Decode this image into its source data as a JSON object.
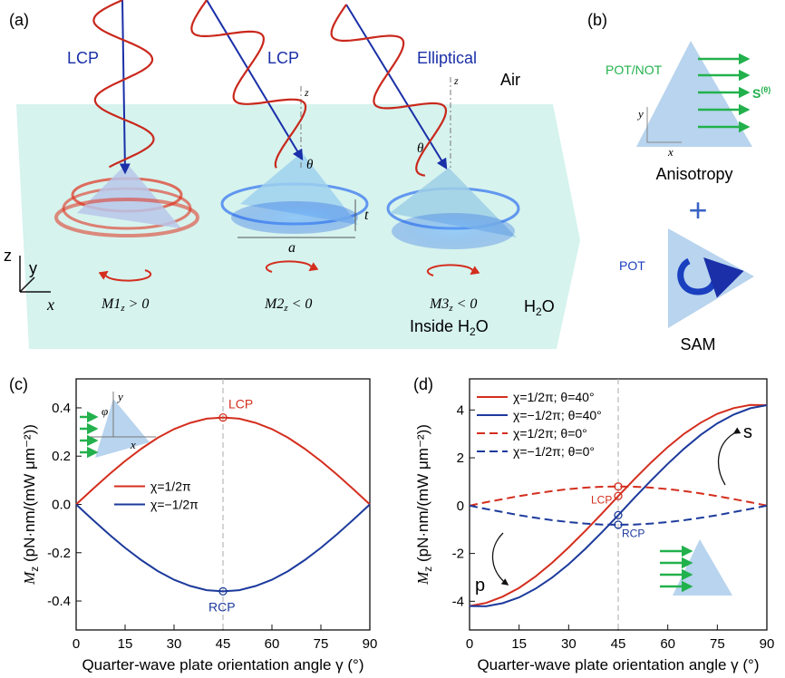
{
  "panel_labels": [
    "(a)",
    "(b)",
    "(c)",
    "(d)"
  ],
  "illustration_a": {
    "beam_labels": [
      "LCP",
      "LCP",
      "Elliptical"
    ],
    "air": "Air",
    "z_labels": [
      "z",
      "z"
    ],
    "theta_labels": [
      "θ",
      "θ"
    ],
    "t": "t",
    "a": "a",
    "torques": [
      [
        "M1",
        "z",
        " > 0"
      ],
      [
        "M2",
        "z",
        " < 0"
      ],
      [
        "M3",
        "z",
        " < 0"
      ]
    ],
    "h2o": [
      "H",
      "2",
      "O"
    ],
    "inside_h2o": [
      "Inside H",
      "2",
      "O"
    ],
    "axes": [
      "z",
      "y",
      "x"
    ]
  },
  "illustration_b": {
    "pot_not": "POT/NOT",
    "s_theta": [
      "S",
      "(θ)"
    ],
    "axes": [
      "y",
      "x"
    ],
    "anisotropy": "Anisotropy",
    "plus": "+",
    "pot": "POT",
    "sam": "SAM"
  },
  "chart_data": [
    {
      "type": "line",
      "x_label": "Quarter-wave plate orientation angle γ (°)",
      "y_label": {
        "symbol": "M",
        "subscript": "z",
        "unit": " (pN·nm/(mW μm⁻²))"
      },
      "x": [
        0,
        5,
        10,
        15,
        20,
        25,
        30,
        35,
        40,
        45,
        50,
        55,
        60,
        65,
        70,
        75,
        80,
        85,
        90
      ],
      "series": [
        {
          "name": "χ=1/2π",
          "color": "#d42e1e",
          "dash": false,
          "values": [
            0,
            0.0625,
            0.123,
            0.18,
            0.231,
            0.276,
            0.312,
            0.338,
            0.355,
            0.36,
            0.355,
            0.338,
            0.312,
            0.276,
            0.231,
            0.18,
            0.123,
            0.0625,
            0
          ]
        },
        {
          "name": "χ=−1/2π",
          "color": "#1c3a9c",
          "dash": false,
          "values": [
            0,
            -0.0625,
            -0.123,
            -0.18,
            -0.231,
            -0.276,
            -0.312,
            -0.338,
            -0.355,
            -0.36,
            -0.355,
            -0.338,
            -0.312,
            -0.276,
            -0.231,
            -0.18,
            -0.123,
            -0.0625,
            0
          ]
        }
      ],
      "marker_x": 45,
      "vline": 45,
      "annotations": [
        "LCP",
        "RCP"
      ],
      "inset_labels": [
        "y",
        "x",
        "φ"
      ],
      "xlim": [
        0,
        90
      ],
      "xticks": [
        0,
        15,
        30,
        45,
        60,
        75,
        90
      ],
      "ylim": [
        -0.52,
        0.52
      ],
      "yticks": [
        -0.4,
        -0.2,
        {
          "value": 0,
          "label": "0.0"
        },
        0.2,
        0.4
      ],
      "legend": "center left"
    },
    {
      "type": "line",
      "x_label": "Quarter-wave plate orientation angle γ (°)",
      "y_label": {
        "symbol": "M",
        "subscript": "z",
        "unit": " (pN·nm/(mW μm⁻²))"
      },
      "x": [
        0,
        5,
        10,
        15,
        20,
        25,
        30,
        35,
        40,
        45,
        50,
        55,
        60,
        65,
        70,
        75,
        80,
        85,
        90
      ],
      "series": [
        {
          "name": "χ=1/2π; θ=40°",
          "color": "#d42e1e",
          "dash": false,
          "values": [
            -4.2,
            -4.07,
            -3.81,
            -3.44,
            -2.96,
            -2.39,
            -1.75,
            -1.06,
            -0.34,
            0.4,
            1.12,
            1.81,
            2.45,
            3.01,
            3.47,
            3.84,
            4.08,
            4.21,
            4.2
          ]
        },
        {
          "name": "χ=−1/2π; θ=40°",
          "color": "#1c3a9c",
          "dash": false,
          "values": [
            -4.2,
            -4.21,
            -4.08,
            -3.84,
            -3.47,
            -3.01,
            -2.45,
            -1.81,
            -1.12,
            -0.4,
            0.34,
            1.06,
            1.75,
            2.39,
            2.96,
            3.44,
            3.81,
            4.07,
            4.2
          ]
        },
        {
          "name": "χ=1/2π; θ=0°",
          "color": "#d42e1e",
          "dash": true,
          "values": [
            0,
            0.14,
            0.27,
            0.4,
            0.51,
            0.61,
            0.69,
            0.75,
            0.79,
            0.8,
            0.79,
            0.75,
            0.69,
            0.61,
            0.51,
            0.4,
            0.27,
            0.14,
            0
          ]
        },
        {
          "name": "χ=−1/2π; θ=0°",
          "color": "#1c3a9c",
          "dash": true,
          "values": [
            0,
            -0.14,
            -0.27,
            -0.4,
            -0.51,
            -0.61,
            -0.69,
            -0.75,
            -0.79,
            -0.8,
            -0.79,
            -0.75,
            -0.69,
            -0.61,
            -0.51,
            -0.4,
            -0.27,
            -0.14,
            0
          ]
        }
      ],
      "marker_x": 45,
      "vline": 45,
      "annotations": [
        "LCP",
        "RCP",
        "s",
        "p"
      ],
      "xlim": [
        0,
        90
      ],
      "xticks": [
        0,
        15,
        30,
        45,
        60,
        75,
        90
      ],
      "ylim": [
        -5.2,
        5.3
      ],
      "yticks": [
        -4,
        -2,
        0,
        2,
        4
      ],
      "legend": "upper left"
    }
  ]
}
